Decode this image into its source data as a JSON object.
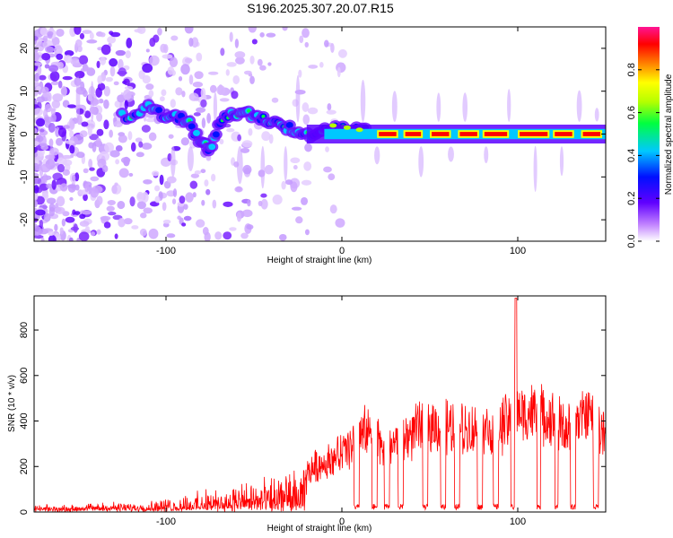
{
  "title": "S196.2025.307.20.07.R15",
  "chart_data": [
    {
      "type": "heatmap",
      "name": "spectrogram",
      "xlabel": "Height of straight line (km)",
      "ylabel": "Frequency (Hz)",
      "xlim": [
        -175,
        150
      ],
      "ylim": [
        -25,
        25
      ],
      "xticks": [
        -100,
        0,
        100
      ],
      "yticks": [
        20,
        10,
        0,
        -10,
        -20
      ],
      "xtick_labels": [
        "-100",
        "0",
        "100"
      ],
      "ytick_labels": [
        "20",
        "10",
        "0",
        "-10",
        "-20"
      ],
      "description_of_features": {
        "central_tone_frequency_hz": 0,
        "strong_tone_segments_km": [
          [
            20,
            32
          ],
          [
            35,
            46
          ],
          [
            50,
            62
          ],
          [
            66,
            78
          ],
          [
            80,
            95
          ],
          [
            100,
            118
          ],
          [
            120,
            132
          ],
          [
            136,
            148
          ]
        ],
        "scattered_noise_region_km": [
          -175,
          -20
        ],
        "wander_points": [
          {
            "x": -125,
            "f": 4
          },
          {
            "x": -110,
            "f": 6
          },
          {
            "x": -98,
            "f": 4
          },
          {
            "x": -88,
            "f": 3
          },
          {
            "x": -80,
            "f": -2
          },
          {
            "x": -75,
            "f": -4
          },
          {
            "x": -68,
            "f": 4
          },
          {
            "x": -58,
            "f": 5
          },
          {
            "x": -48,
            "f": 4
          },
          {
            "x": -38,
            "f": 3
          },
          {
            "x": -28,
            "f": 1
          },
          {
            "x": -18,
            "f": 0
          },
          {
            "x": -8,
            "f": 1
          },
          {
            "x": 5,
            "f": 1
          },
          {
            "x": 15,
            "f": 0.5
          }
        ]
      }
    },
    {
      "type": "colorbar",
      "name": "amplitude-colorbar",
      "label": "Normalized spectral amplitude",
      "range": [
        0,
        1
      ],
      "ticks": [
        0.0,
        0.2,
        0.4,
        0.6,
        0.8
      ],
      "tick_labels": [
        "0.0",
        "0.2",
        "0.4",
        "0.6",
        "0.8"
      ],
      "colors": [
        "#ffffff",
        "#b24cff",
        "#5a00ff",
        "#0010ff",
        "#00c8ff",
        "#00ff40",
        "#b4ff00",
        "#ffff00",
        "#ff8000",
        "#ff0000",
        "#ff1493"
      ]
    },
    {
      "type": "line",
      "name": "snr-plot",
      "xlabel": "Height of straight line (km)",
      "ylabel": "SNR (10 * v/v)",
      "xlim": [
        -175,
        150
      ],
      "ylim": [
        0,
        950
      ],
      "xticks": [
        -100,
        0,
        100
      ],
      "yticks": [
        0,
        200,
        400,
        600,
        800
      ],
      "xtick_labels": [
        "-100",
        "0",
        "100"
      ],
      "ytick_labels": [
        "0",
        "200",
        "400",
        "600",
        "800"
      ],
      "color": "#ff0000",
      "envelope": [
        {
          "x": -175,
          "y": 20
        },
        {
          "x": -150,
          "y": 25
        },
        {
          "x": -140,
          "y": 40
        },
        {
          "x": -120,
          "y": 40
        },
        {
          "x": -100,
          "y": 60
        },
        {
          "x": -80,
          "y": 100
        },
        {
          "x": -60,
          "y": 140
        },
        {
          "x": -40,
          "y": 170
        },
        {
          "x": -20,
          "y": 230
        },
        {
          "x": -10,
          "y": 280
        },
        {
          "x": 0,
          "y": 330
        },
        {
          "x": 5,
          "y": 380
        },
        {
          "x": 10,
          "y": 420
        },
        {
          "x": 14,
          "y": 460
        },
        {
          "x": 20,
          "y": 400
        },
        {
          "x": 30,
          "y": 380
        },
        {
          "x": 40,
          "y": 450
        },
        {
          "x": 50,
          "y": 500
        },
        {
          "x": 60,
          "y": 480
        },
        {
          "x": 70,
          "y": 470
        },
        {
          "x": 80,
          "y": 460
        },
        {
          "x": 90,
          "y": 480
        },
        {
          "x": 100,
          "y": 560
        },
        {
          "x": 110,
          "y": 560
        },
        {
          "x": 120,
          "y": 520
        },
        {
          "x": 130,
          "y": 460
        },
        {
          "x": 140,
          "y": 570
        },
        {
          "x": 150,
          "y": 420
        }
      ],
      "dropouts_km": [
        [
          7,
          10
        ],
        [
          17,
          20
        ],
        [
          24,
          27
        ],
        [
          32,
          35
        ],
        [
          46,
          49
        ],
        [
          56,
          59
        ],
        [
          64,
          67
        ],
        [
          77,
          80
        ],
        [
          86,
          89
        ],
        [
          96,
          98
        ],
        [
          111,
          113
        ],
        [
          121,
          123
        ],
        [
          130,
          133
        ],
        [
          143,
          146
        ]
      ],
      "peak": {
        "x": 99,
        "y": 940
      }
    }
  ]
}
